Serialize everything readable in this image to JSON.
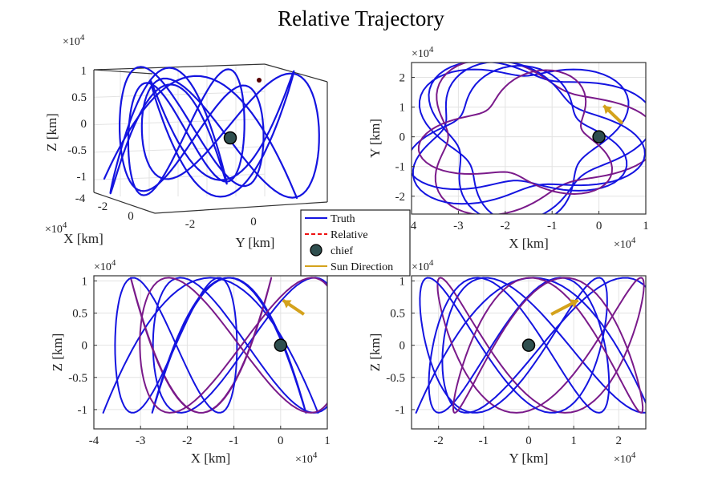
{
  "figure": {
    "title": "Relative Trajectory"
  },
  "colors": {
    "truth": "#1414e0",
    "relative": "#ee1111",
    "chief_fill": "#2f4f4f",
    "sun": "#d4a21c",
    "overlap": "#7a1a8a",
    "grid": "#e3e3e3",
    "axis": "#333333"
  },
  "legend": {
    "entries": [
      {
        "label": "Truth",
        "marker": "line-solid",
        "color": "#1414e0"
      },
      {
        "label": "Relative",
        "marker": "line-dashed",
        "color": "#ee1111"
      },
      {
        "label": "chief",
        "marker": "circle",
        "color": "#2f4f4f"
      },
      {
        "label": "Sun Direction",
        "marker": "line-solid",
        "color": "#d4a21c"
      }
    ]
  },
  "chart_data": [
    {
      "id": "p3d",
      "type": "line",
      "view": "3d",
      "xlabel": "X [km]",
      "ylabel": "Y [km]",
      "zlabel": "Z [km]",
      "xticks": [
        "-4",
        "-2",
        "0"
      ],
      "xmult": "×10",
      "yticks": [
        "-2",
        "0"
      ],
      "zticks": [
        "1",
        "0.5",
        "0",
        "-0.5",
        "-1"
      ],
      "zmult": "×10",
      "mult_exp": "4",
      "grid": true
    },
    {
      "id": "pxy",
      "type": "line",
      "xlabel": "X [km]",
      "ylabel": "Y [km]",
      "xlim": [
        -4,
        1
      ],
      "ylim": [
        -2.6,
        2.5
      ],
      "xticks": [
        -4,
        -3,
        -2,
        -1,
        0,
        1
      ],
      "xtick_labels": [
        "-4",
        "-3",
        "-2",
        "-1",
        "0",
        "1"
      ],
      "yticks": [
        2,
        1,
        0,
        -1,
        -2
      ],
      "ytick_labels": [
        "2",
        "1",
        "0",
        "-1",
        "-2"
      ],
      "xmult": "×10",
      "ymult": "×10",
      "mult_exp": "4",
      "chief": [
        0,
        0
      ],
      "sun": {
        "from": [
          0.5,
          0.45
        ],
        "to": [
          0.1,
          1.05
        ]
      },
      "grid": true
    },
    {
      "id": "pxz",
      "type": "line",
      "xlabel": "X [km]",
      "ylabel": "Z [km]",
      "xlim": [
        -4,
        1
      ],
      "ylim": [
        -1.3,
        1.08
      ],
      "xticks": [
        -4,
        -3,
        -2,
        -1,
        0,
        1
      ],
      "xtick_labels": [
        "-4",
        "-3",
        "-2",
        "-1",
        "0",
        "1"
      ],
      "yticks": [
        1,
        0.5,
        0,
        -0.5,
        -1
      ],
      "ytick_labels": [
        "1",
        "0.5",
        "0",
        "-0.5",
        "-1"
      ],
      "xmult": "×10",
      "ymult": "×10",
      "mult_exp": "4",
      "chief": [
        0,
        0
      ],
      "sun": {
        "from": [
          0.5,
          0.48
        ],
        "to": [
          0.05,
          0.7
        ]
      },
      "grid": true
    },
    {
      "id": "pyz",
      "type": "line",
      "xlabel": "Y [km]",
      "ylabel": "Z [km]",
      "xlim": [
        -2.6,
        2.6
      ],
      "ylim": [
        -1.3,
        1.08
      ],
      "xticks": [
        -2,
        -1,
        0,
        1,
        2
      ],
      "xtick_labels": [
        "-2",
        "-1",
        "0",
        "1",
        "2"
      ],
      "yticks": [
        1,
        0.5,
        0,
        -0.5,
        -1
      ],
      "ytick_labels": [
        "1",
        "0.5",
        "0",
        "-0.5",
        "-1"
      ],
      "xmult": "×10",
      "ymult": "×10",
      "mult_exp": "4",
      "chief": [
        0,
        0
      ],
      "sun": {
        "from": [
          0.5,
          0.48
        ],
        "to": [
          1.1,
          0.7
        ]
      },
      "grid": true
    }
  ]
}
